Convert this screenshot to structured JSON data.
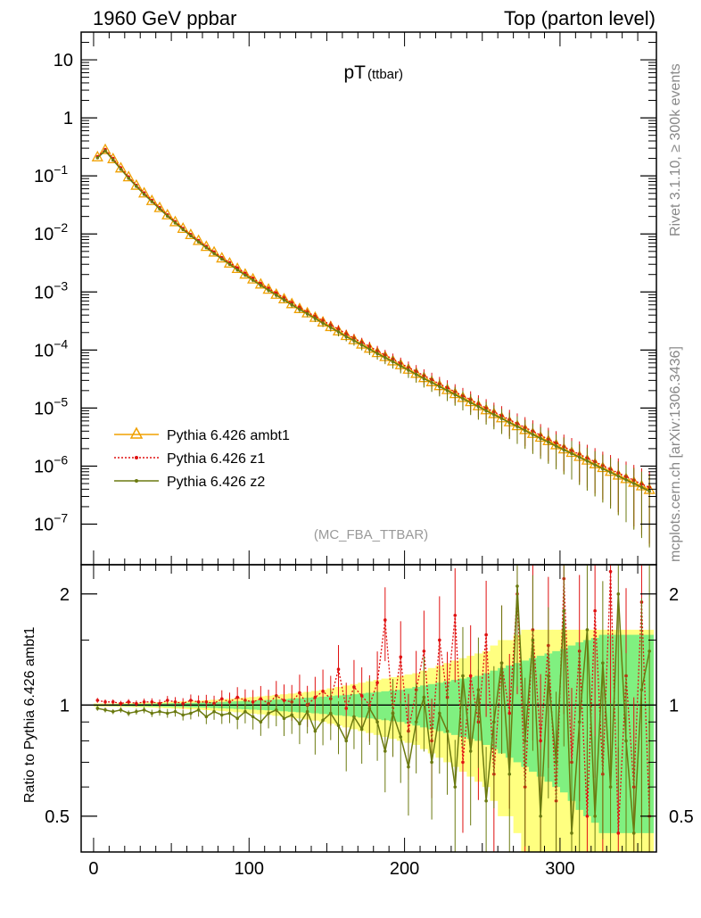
{
  "header": {
    "left_title": "1960 GeV ppbar",
    "right_title": "Top (parton level)"
  },
  "side_labels": {
    "rivet": "Rivet 3.1.10, ≥ 300k events",
    "mcplots": "mcplots.cern.ch [arXiv:1306.3436]"
  },
  "colors": {
    "ambt1": "#f0a000",
    "z1": "#e01010",
    "z2": "#6b7a10",
    "band_yellow": "#ffff80",
    "band_green": "#80f080"
  },
  "chart_data": [
    {
      "type": "line",
      "panel": "main",
      "title": "pT",
      "title_suffix": "(ttbar)",
      "analysis_label": "(MC_FBA_TTBAR)",
      "xlabel": "",
      "ylabel": "",
      "yscale": "log",
      "xlim": [
        -8,
        362
      ],
      "ylim": [
        2e-08,
        30
      ],
      "x_ticks": [
        "0",
        "100",
        "200",
        "300"
      ],
      "y_ticks": [
        {
          "base": "10",
          "exp": ""
        },
        {
          "base": "1",
          "exp": ""
        },
        {
          "base": "10",
          "exp": "−1"
        },
        {
          "base": "10",
          "exp": "−2"
        },
        {
          "base": "10",
          "exp": "−3"
        },
        {
          "base": "10",
          "exp": "−4"
        },
        {
          "base": "10",
          "exp": "−5"
        },
        {
          "base": "10",
          "exp": "−6"
        },
        {
          "base": "10",
          "exp": "−7"
        }
      ],
      "legend": [
        "Pythia 6.426 ambt1",
        "Pythia 6.426 z1",
        "Pythia 6.426 z2"
      ],
      "legend_position": "lower-left",
      "x": [
        2.5,
        7.5,
        12.5,
        17.5,
        22.5,
        27.5,
        32.5,
        37.5,
        42.5,
        47.5,
        52.5,
        57.5,
        62.5,
        67.5,
        72.5,
        77.5,
        82.5,
        87.5,
        92.5,
        97.5,
        102.5,
        107.5,
        112.5,
        117.5,
        122.5,
        127.5,
        132.5,
        137.5,
        142.5,
        147.5,
        152.5,
        157.5,
        162.5,
        167.5,
        172.5,
        177.5,
        182.5,
        187.5,
        192.5,
        197.5,
        202.5,
        207.5,
        212.5,
        217.5,
        222.5,
        227.5,
        232.5,
        237.5,
        242.5,
        247.5,
        252.5,
        257.5,
        262.5,
        267.5,
        272.5,
        277.5,
        282.5,
        287.5,
        292.5,
        297.5,
        302.5,
        307.5,
        312.5,
        317.5,
        322.5,
        327.5,
        332.5,
        337.5,
        342.5,
        347.5,
        352.5,
        357.5
      ],
      "series": [
        {
          "name": "Pythia 6.426 ambt1",
          "values": [
            0.21,
            0.28,
            0.195,
            0.135,
            0.095,
            0.068,
            0.05,
            0.037,
            0.028,
            0.021,
            0.016,
            0.0123,
            0.0096,
            0.0076,
            0.006,
            0.0048,
            0.0038,
            0.0031,
            0.0025,
            0.002,
            0.00165,
            0.00135,
            0.0011,
            0.0009,
            0.00075,
            0.00062,
            0.00051,
            0.00043,
            0.00036,
            0.0003,
            0.00025,
            0.00021,
            0.000175,
            0.000148,
            0.000125,
            0.000106,
            8.9e-05,
            7.6e-05,
            6.4e-05,
            5.5e-05,
            4.6e-05,
            3.9e-05,
            3.3e-05,
            2.8e-05,
            2.4e-05,
            2.05e-05,
            1.75e-05,
            1.5e-05,
            1.27e-05,
            1.08e-05,
            9.2e-06,
            7.9e-06,
            6.7e-06,
            5.7e-06,
            4.9e-06,
            4.2e-06,
            3.6e-06,
            3.1e-06,
            2.7e-06,
            2.3e-06,
            1.95e-06,
            1.7e-06,
            1.45e-06,
            1.25e-06,
            1.08e-06,
            9.3e-07,
            8e-07,
            6.9e-07,
            6e-07,
            5.2e-07,
            4.5e-07,
            3.9e-07
          ]
        },
        {
          "name": "Pythia 6.426 z1",
          "values": [
            0.215,
            0.285,
            0.2,
            0.138,
            0.096,
            0.069,
            0.051,
            0.038,
            0.0284,
            0.0213,
            0.0163,
            0.0125,
            0.0098,
            0.0077,
            0.0061,
            0.0049,
            0.0039,
            0.0032,
            0.0026,
            0.0021,
            0.00172,
            0.0014,
            0.00115,
            0.00095,
            0.00079,
            0.00065,
            0.00054,
            0.00045,
            0.00038,
            0.00032,
            0.00027,
            0.00023,
            0.00019,
            0.00016,
            0.000136,
            0.000115,
            9.7e-05,
            8.2e-05,
            7e-05,
            5.9e-05,
            5e-05,
            4.3e-05,
            3.6e-05,
            3.1e-05,
            2.6e-05,
            2.25e-05,
            1.9e-05,
            1.62e-05,
            1.4e-05,
            1.18e-05,
            1e-05,
            8.6e-06,
            7.4e-06,
            6.3e-06,
            5.4e-06,
            4.6e-06,
            4e-06,
            3.4e-06,
            2.9e-06,
            2.5e-06,
            2.15e-06,
            1.85e-06,
            1.6e-06,
            1.38e-06,
            1.19e-06,
            1.02e-06,
            8.8e-07,
            7.6e-07,
            6.6e-07,
            5.7e-07,
            4.9e-07,
            4.3e-07
          ]
        },
        {
          "name": "Pythia 6.426 z2",
          "values": [
            0.205,
            0.27,
            0.188,
            0.13,
            0.091,
            0.066,
            0.048,
            0.036,
            0.027,
            0.0203,
            0.0155,
            0.0119,
            0.0093,
            0.0073,
            0.0058,
            0.0046,
            0.0037,
            0.003,
            0.0024,
            0.00195,
            0.0016,
            0.0013,
            0.00107,
            0.00088,
            0.00073,
            0.0006,
            0.0005,
            0.00042,
            0.00035,
            0.00029,
            0.000245,
            0.000205,
            0.00017,
            0.000145,
            0.000122,
            0.000103,
            8.7e-05,
            7.4e-05,
            6.3e-05,
            5.3e-05,
            4.5e-05,
            3.8e-05,
            3.2e-05,
            2.75e-05,
            2.35e-05,
            2e-05,
            1.7e-05,
            1.45e-05,
            1.24e-05,
            1.06e-05,
            9e-06,
            7.7e-06,
            6.6e-06,
            5.6e-06,
            4.8e-06,
            4.1e-06,
            3.5e-06,
            3e-06,
            2.6e-06,
            2.2e-06,
            1.9e-06,
            1.65e-06,
            1.42e-06,
            1.22e-06,
            1.05e-06,
            9e-07,
            7.8e-07,
            6.7e-07,
            5.8e-07,
            5e-07,
            4.3e-07,
            3.7e-07
          ]
        }
      ]
    },
    {
      "type": "line",
      "panel": "ratio",
      "xlabel": "",
      "ylabel": "Ratio to Pythia 6.426 ambt1",
      "yscale": "log",
      "xlim": [
        -8,
        362
      ],
      "ylim": [
        0.4,
        2.4
      ],
      "y_ticks": [
        "2",
        "1",
        "0.5"
      ],
      "x": [
        2.5,
        7.5,
        12.5,
        17.5,
        22.5,
        27.5,
        32.5,
        37.5,
        42.5,
        47.5,
        52.5,
        57.5,
        62.5,
        67.5,
        72.5,
        77.5,
        82.5,
        87.5,
        92.5,
        97.5,
        102.5,
        107.5,
        112.5,
        117.5,
        122.5,
        127.5,
        132.5,
        137.5,
        142.5,
        147.5,
        152.5,
        157.5,
        162.5,
        167.5,
        172.5,
        177.5,
        182.5,
        187.5,
        192.5,
        197.5,
        202.5,
        207.5,
        212.5,
        217.5,
        222.5,
        227.5,
        232.5,
        237.5,
        242.5,
        247.5,
        252.5,
        257.5,
        262.5,
        267.5,
        272.5,
        277.5,
        282.5,
        287.5,
        292.5,
        297.5,
        302.5,
        307.5,
        312.5,
        317.5,
        322.5,
        327.5,
        332.5,
        337.5,
        342.5,
        347.5,
        352.5,
        357.5
      ],
      "band_yellow_halfwidth": [
        0.01,
        0.01,
        0.01,
        0.012,
        0.012,
        0.014,
        0.015,
        0.016,
        0.018,
        0.02,
        0.022,
        0.024,
        0.026,
        0.028,
        0.031,
        0.034,
        0.037,
        0.04,
        0.044,
        0.048,
        0.052,
        0.056,
        0.06,
        0.065,
        0.07,
        0.075,
        0.08,
        0.086,
        0.092,
        0.1,
        0.11,
        0.12,
        0.13,
        0.14,
        0.15,
        0.16,
        0.17,
        0.18,
        0.19,
        0.2,
        0.21,
        0.22,
        0.24,
        0.26,
        0.28,
        0.3,
        0.32,
        0.34,
        0.36,
        0.38,
        0.4,
        0.45,
        0.5,
        0.5,
        0.55,
        0.6,
        0.6,
        0.6,
        0.6,
        0.6,
        0.6,
        0.6,
        0.6,
        0.6,
        0.6,
        0.6,
        0.6,
        0.6,
        0.6,
        0.6,
        0.6,
        0.6
      ],
      "band_green_halfwidth": [
        0.005,
        0.005,
        0.006,
        0.006,
        0.007,
        0.008,
        0.008,
        0.009,
        0.01,
        0.011,
        0.012,
        0.013,
        0.014,
        0.015,
        0.016,
        0.018,
        0.02,
        0.022,
        0.024,
        0.026,
        0.028,
        0.03,
        0.032,
        0.035,
        0.038,
        0.041,
        0.044,
        0.047,
        0.05,
        0.054,
        0.058,
        0.062,
        0.066,
        0.07,
        0.075,
        0.08,
        0.085,
        0.09,
        0.095,
        0.1,
        0.11,
        0.12,
        0.13,
        0.14,
        0.15,
        0.16,
        0.17,
        0.18,
        0.19,
        0.2,
        0.22,
        0.24,
        0.26,
        0.28,
        0.3,
        0.32,
        0.34,
        0.36,
        0.38,
        0.4,
        0.42,
        0.45,
        0.48,
        0.5,
        0.52,
        0.55,
        0.55,
        0.55,
        0.55,
        0.55,
        0.55,
        0.55
      ],
      "series": [
        {
          "name": "Pythia 6.426 z1",
          "values": [
            1.03,
            1.02,
            1.02,
            1.01,
            1.02,
            1.01,
            1.02,
            1.02,
            1.01,
            1.03,
            1.02,
            1.01,
            1.03,
            1.02,
            1.02,
            1.01,
            1.04,
            1.02,
            1.05,
            1.03,
            1.02,
            1.04,
            1.01,
            1.06,
            1.03,
            1.02,
            1.08,
            1.0,
            1.05,
            1.09,
            1.04,
            1.25,
            0.98,
            1.12,
            1.06,
            1.0,
            1.15,
            1.7,
            0.95,
            1.35,
            0.85,
            1.1,
            1.4,
            0.8,
            1.5,
            1.05,
            1.75,
            0.7,
            1.2,
            0.9,
            1.55,
            0.65,
            1.3,
            0.95,
            2.0,
            0.6,
            1.6,
            0.8,
            1.45,
            0.55,
            2.2,
            0.7,
            1.4,
            0.5,
            1.8,
            0.65,
            2.3,
            0.45,
            1.2,
            0.6,
            1.9,
            0.5
          ]
        },
        {
          "name": "Pythia 6.426 z2",
          "values": [
            0.98,
            0.97,
            0.96,
            0.97,
            0.95,
            0.96,
            0.97,
            0.95,
            0.96,
            0.95,
            0.96,
            0.94,
            0.95,
            0.97,
            0.93,
            0.96,
            0.94,
            0.95,
            0.92,
            0.96,
            0.93,
            0.9,
            0.95,
            0.97,
            0.92,
            0.94,
            0.89,
            0.96,
            0.85,
            0.91,
            0.95,
            0.88,
            0.8,
            0.93,
            0.86,
            0.98,
            0.9,
            0.75,
            0.95,
            0.82,
            0.68,
            0.9,
            1.05,
            0.7,
            0.95,
            0.85,
            0.6,
            1.2,
            0.75,
            1.1,
            0.55,
            0.9,
            1.3,
            0.65,
            2.1,
            0.8,
            1.5,
            0.5,
            1.2,
            0.7,
            1.8,
            0.45,
            0.9,
            1.6,
            0.5,
            1.3,
            0.6,
            2.0,
            0.8,
            0.45,
            1.1,
            1.4
          ]
        }
      ]
    }
  ]
}
